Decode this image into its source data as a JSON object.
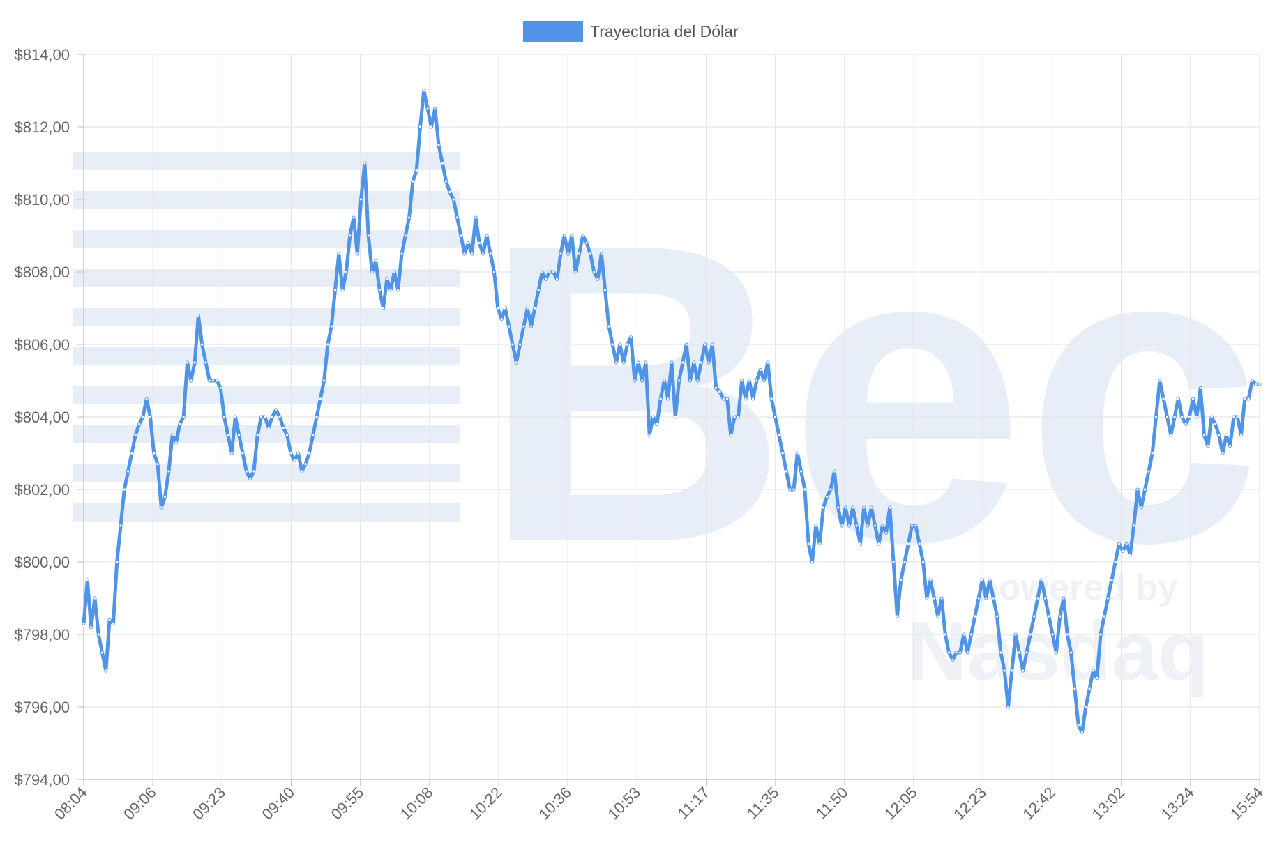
{
  "watermark": {
    "logo_text": "Bec",
    "powered_text": "powered by",
    "brand_text": "Nasdaq"
  },
  "chart_data": {
    "type": "line",
    "title": "",
    "xlabel": "",
    "ylabel": "",
    "ylim": [
      794,
      814
    ],
    "ytick_step": 2,
    "y_ticks": [
      "$814,00",
      "$812,00",
      "$810,00",
      "$808,00",
      "$806,00",
      "$804,00",
      "$802,00",
      "$800,00",
      "$798,00",
      "$796,00",
      "$794,00"
    ],
    "x_ticks": [
      "08:04",
      "09:06",
      "09:23",
      "09:40",
      "09:55",
      "10:08",
      "10:22",
      "10:36",
      "10:53",
      "11:17",
      "11:35",
      "11:50",
      "12:05",
      "12:23",
      "12:42",
      "13:02",
      "13:24",
      "15:54"
    ],
    "grid": true,
    "legend_position": "top-center",
    "colors": {
      "line": "#4f94e6",
      "grid": "#e5e5e5",
      "watermark": "#e8eef7"
    },
    "series": [
      {
        "name": "Trayectoria del Dólar",
        "values": [
          798.3,
          799.5,
          798.2,
          799.0,
          798.0,
          797.5,
          797.0,
          798.4,
          798.3,
          800.0,
          801.0,
          802.0,
          802.5,
          803.0,
          803.5,
          803.8,
          804.0,
          804.5,
          804.0,
          803.0,
          802.7,
          801.5,
          801.8,
          802.5,
          803.5,
          803.3,
          803.8,
          804.0,
          805.5,
          805.0,
          805.5,
          806.8,
          806.0,
          805.5,
          805.0,
          805.0,
          805.0,
          804.8,
          804.0,
          803.5,
          803.0,
          804.0,
          803.5,
          803.0,
          802.5,
          802.3,
          802.5,
          803.5,
          804.0,
          804.0,
          803.7,
          804.0,
          804.2,
          804.0,
          803.7,
          803.5,
          803.0,
          802.8,
          803.0,
          802.5,
          802.7,
          803.0,
          803.5,
          804.0,
          804.5,
          805.0,
          806.0,
          806.5,
          807.5,
          808.5,
          807.5,
          808.0,
          809.0,
          809.5,
          808.5,
          810.0,
          811.0,
          809.0,
          808.0,
          808.3,
          807.5,
          807.0,
          807.8,
          807.5,
          808.0,
          807.5,
          808.5,
          809.0,
          809.5,
          810.5,
          810.8,
          812.0,
          813.0,
          812.5,
          812.0,
          812.5,
          811.5,
          811.0,
          810.5,
          810.2,
          810.0,
          809.5,
          809.0,
          808.5,
          808.8,
          808.5,
          809.5,
          808.8,
          808.5,
          809.0,
          808.5,
          808.0,
          807.0,
          806.7,
          807.0,
          806.5,
          806.0,
          805.5,
          806.0,
          806.5,
          807.0,
          806.5,
          807.0,
          807.5,
          808.0,
          807.8,
          808.0,
          808.0,
          807.8,
          808.5,
          809.0,
          808.5,
          809.0,
          808.0,
          808.5,
          809.0,
          808.8,
          808.5,
          808.0,
          807.8,
          808.5,
          807.5,
          806.5,
          806.0,
          805.5,
          806.0,
          805.5,
          806.0,
          806.2,
          805.0,
          805.5,
          805.0,
          805.5,
          803.5,
          804.0,
          803.8,
          804.5,
          805.0,
          804.5,
          805.5,
          804.0,
          805.0,
          805.5,
          806.0,
          805.0,
          805.5,
          805.0,
          805.5,
          806.0,
          805.5,
          806.0,
          804.8,
          804.7,
          804.5,
          804.5,
          803.5,
          804.0,
          804.0,
          805.0,
          804.5,
          805.0,
          804.5,
          805.0,
          805.3,
          805.0,
          805.5,
          804.5,
          804.0,
          803.5,
          803.0,
          802.5,
          802.0,
          802.0,
          803.0,
          802.5,
          802.0,
          800.5,
          800.0,
          801.0,
          800.5,
          801.5,
          801.8,
          802.0,
          802.5,
          801.5,
          801.0,
          801.5,
          801.0,
          801.5,
          801.0,
          800.5,
          801.5,
          801.0,
          801.5,
          801.0,
          800.5,
          801.0,
          800.8,
          801.5,
          800.0,
          798.5,
          799.5,
          800.0,
          800.5,
          801.0,
          801.0,
          800.5,
          800.0,
          799.0,
          799.5,
          799.0,
          798.5,
          799.0,
          798.0,
          797.5,
          797.3,
          797.5,
          797.5,
          798.0,
          797.5,
          798.0,
          798.5,
          799.0,
          799.5,
          799.0,
          799.5,
          799.0,
          798.5,
          797.5,
          797.0,
          796.0,
          797.0,
          798.0,
          797.5,
          797.0,
          797.5,
          798.0,
          798.5,
          799.0,
          799.5,
          799.0,
          798.5,
          798.0,
          797.5,
          798.5,
          799.0,
          798.0,
          797.5,
          796.5,
          795.5,
          795.3,
          796.0,
          796.5,
          797.0,
          796.8,
          798.0,
          798.5,
          799.0,
          799.5,
          800.0,
          800.5,
          800.3,
          800.5,
          800.2,
          801.0,
          802.0,
          801.5,
          802.0,
          802.5,
          803.0,
          804.0,
          805.0,
          804.5,
          804.0,
          803.5,
          804.0,
          804.5,
          804.0,
          803.8,
          804.0,
          804.5,
          804.0,
          804.8,
          803.5,
          803.2,
          804.0,
          803.8,
          803.5,
          803.0,
          803.5,
          803.2,
          804.0,
          804.0,
          803.5,
          804.5,
          804.5,
          805.0,
          804.9,
          804.9
        ]
      }
    ]
  }
}
